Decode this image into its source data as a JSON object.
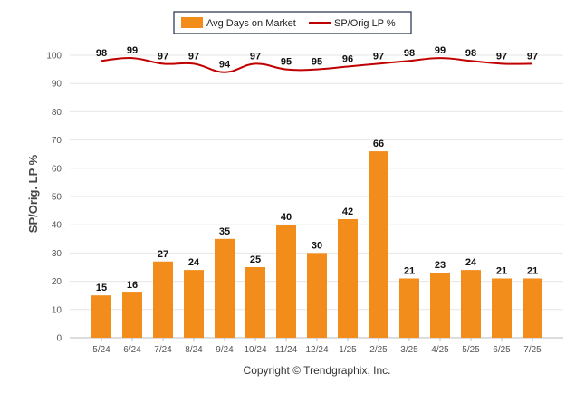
{
  "chart_data": {
    "type": "bar",
    "categories": [
      "5/24",
      "6/24",
      "7/24",
      "8/24",
      "9/24",
      "10/24",
      "11/24",
      "12/24",
      "1/25",
      "2/25",
      "3/25",
      "4/25",
      "5/25",
      "6/25",
      "7/25"
    ],
    "series": [
      {
        "name": "Avg Days on Market",
        "type": "bar",
        "color": "#F28C1B",
        "values": [
          15,
          16,
          27,
          24,
          35,
          25,
          40,
          30,
          42,
          66,
          21,
          23,
          24,
          21,
          21
        ]
      },
      {
        "name": "SP/Orig LP %",
        "type": "line",
        "color": "#C00000",
        "values": [
          98,
          99,
          97,
          97,
          94,
          97,
          95,
          95,
          96,
          97,
          98,
          99,
          98,
          97,
          97
        ]
      }
    ],
    "ylabel": "SP/Orig. LP %",
    "ylim": [
      0,
      100
    ],
    "yticks": [
      "0",
      "10",
      "20",
      "30",
      "40",
      "50",
      "60",
      "70",
      "80",
      "90",
      "100"
    ],
    "grid": true,
    "legend_position": "top",
    "credit": "Copyright © Trendgraphix, Inc."
  }
}
